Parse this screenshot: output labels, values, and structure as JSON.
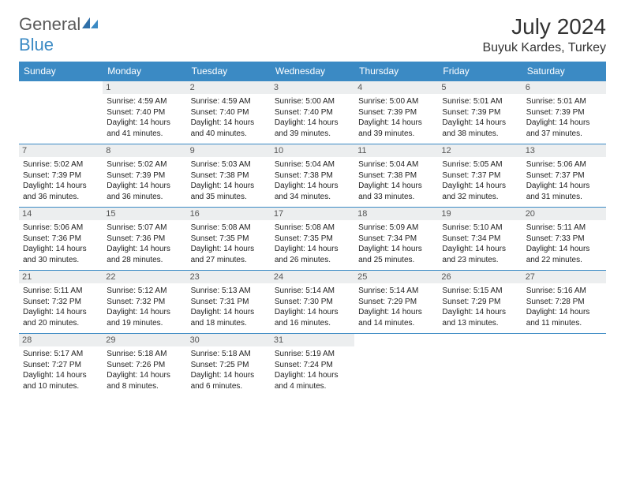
{
  "brand": {
    "name1": "General",
    "name2": "Blue"
  },
  "title": "July 2024",
  "location": "Buyuk Kardes, Turkey",
  "colors": {
    "accent": "#3b8ac4",
    "header_bg": "#3b8ac4",
    "daystrip": "#eceeef",
    "text": "#222"
  },
  "weekdays": [
    "Sunday",
    "Monday",
    "Tuesday",
    "Wednesday",
    "Thursday",
    "Friday",
    "Saturday"
  ],
  "first_weekday_index": 1,
  "days": [
    {
      "n": 1,
      "sr": "4:59 AM",
      "ss": "7:40 PM",
      "dl": "14 hours and 41 minutes."
    },
    {
      "n": 2,
      "sr": "4:59 AM",
      "ss": "7:40 PM",
      "dl": "14 hours and 40 minutes."
    },
    {
      "n": 3,
      "sr": "5:00 AM",
      "ss": "7:40 PM",
      "dl": "14 hours and 39 minutes."
    },
    {
      "n": 4,
      "sr": "5:00 AM",
      "ss": "7:39 PM",
      "dl": "14 hours and 39 minutes."
    },
    {
      "n": 5,
      "sr": "5:01 AM",
      "ss": "7:39 PM",
      "dl": "14 hours and 38 minutes."
    },
    {
      "n": 6,
      "sr": "5:01 AM",
      "ss": "7:39 PM",
      "dl": "14 hours and 37 minutes."
    },
    {
      "n": 7,
      "sr": "5:02 AM",
      "ss": "7:39 PM",
      "dl": "14 hours and 36 minutes."
    },
    {
      "n": 8,
      "sr": "5:02 AM",
      "ss": "7:39 PM",
      "dl": "14 hours and 36 minutes."
    },
    {
      "n": 9,
      "sr": "5:03 AM",
      "ss": "7:38 PM",
      "dl": "14 hours and 35 minutes."
    },
    {
      "n": 10,
      "sr": "5:04 AM",
      "ss": "7:38 PM",
      "dl": "14 hours and 34 minutes."
    },
    {
      "n": 11,
      "sr": "5:04 AM",
      "ss": "7:38 PM",
      "dl": "14 hours and 33 minutes."
    },
    {
      "n": 12,
      "sr": "5:05 AM",
      "ss": "7:37 PM",
      "dl": "14 hours and 32 minutes."
    },
    {
      "n": 13,
      "sr": "5:06 AM",
      "ss": "7:37 PM",
      "dl": "14 hours and 31 minutes."
    },
    {
      "n": 14,
      "sr": "5:06 AM",
      "ss": "7:36 PM",
      "dl": "14 hours and 30 minutes."
    },
    {
      "n": 15,
      "sr": "5:07 AM",
      "ss": "7:36 PM",
      "dl": "14 hours and 28 minutes."
    },
    {
      "n": 16,
      "sr": "5:08 AM",
      "ss": "7:35 PM",
      "dl": "14 hours and 27 minutes."
    },
    {
      "n": 17,
      "sr": "5:08 AM",
      "ss": "7:35 PM",
      "dl": "14 hours and 26 minutes."
    },
    {
      "n": 18,
      "sr": "5:09 AM",
      "ss": "7:34 PM",
      "dl": "14 hours and 25 minutes."
    },
    {
      "n": 19,
      "sr": "5:10 AM",
      "ss": "7:34 PM",
      "dl": "14 hours and 23 minutes."
    },
    {
      "n": 20,
      "sr": "5:11 AM",
      "ss": "7:33 PM",
      "dl": "14 hours and 22 minutes."
    },
    {
      "n": 21,
      "sr": "5:11 AM",
      "ss": "7:32 PM",
      "dl": "14 hours and 20 minutes."
    },
    {
      "n": 22,
      "sr": "5:12 AM",
      "ss": "7:32 PM",
      "dl": "14 hours and 19 minutes."
    },
    {
      "n": 23,
      "sr": "5:13 AM",
      "ss": "7:31 PM",
      "dl": "14 hours and 18 minutes."
    },
    {
      "n": 24,
      "sr": "5:14 AM",
      "ss": "7:30 PM",
      "dl": "14 hours and 16 minutes."
    },
    {
      "n": 25,
      "sr": "5:14 AM",
      "ss": "7:29 PM",
      "dl": "14 hours and 14 minutes."
    },
    {
      "n": 26,
      "sr": "5:15 AM",
      "ss": "7:29 PM",
      "dl": "14 hours and 13 minutes."
    },
    {
      "n": 27,
      "sr": "5:16 AM",
      "ss": "7:28 PM",
      "dl": "14 hours and 11 minutes."
    },
    {
      "n": 28,
      "sr": "5:17 AM",
      "ss": "7:27 PM",
      "dl": "14 hours and 10 minutes."
    },
    {
      "n": 29,
      "sr": "5:18 AM",
      "ss": "7:26 PM",
      "dl": "14 hours and 8 minutes."
    },
    {
      "n": 30,
      "sr": "5:18 AM",
      "ss": "7:25 PM",
      "dl": "14 hours and 6 minutes."
    },
    {
      "n": 31,
      "sr": "5:19 AM",
      "ss": "7:24 PM",
      "dl": "14 hours and 4 minutes."
    }
  ],
  "labels": {
    "sunrise": "Sunrise:",
    "sunset": "Sunset:",
    "daylight": "Daylight:"
  }
}
